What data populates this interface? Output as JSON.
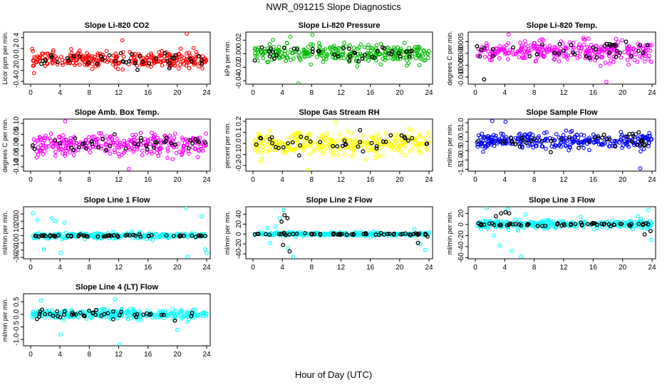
{
  "title": "NWR_091215  Slope Diagnostics",
  "xlabel": "Hour of Day (UTC)",
  "colors": {
    "red": "#ff0000",
    "green": "#00bb00",
    "magenta": "#ff00ff",
    "yellow": "#ffff00",
    "blue": "#0000ff",
    "cyan": "#00ffff",
    "black": "#000000"
  },
  "chart_data": [
    {
      "type": "scatter",
      "title": "Slope Li-820 CO2",
      "ylabel": "Licor ppm per min.",
      "xlim": [
        0,
        24
      ],
      "xticks": [
        "0",
        "4",
        "8",
        "12",
        "16",
        "20",
        "24"
      ],
      "ylim": [
        -0.45,
        0.5
      ],
      "yticks": [
        [
          "-0.4",
          "-0.4"
        ],
        [
          "-0.2",
          "-0.2"
        ],
        [
          "0.0",
          "0"
        ],
        [
          "0.2",
          "0.2"
        ],
        [
          "0.4",
          "0.4"
        ]
      ],
      "color": "red",
      "series": [
        {
          "spread": 0.13,
          "count": 300,
          "outliers": [
            [
              21.3,
              0.47
            ],
            [
              12.5,
              0.35
            ]
          ]
        },
        {
          "black": true,
          "spread": 0.12,
          "count": 40,
          "outliers": []
        }
      ]
    },
    {
      "type": "scatter",
      "title": "Slope Li-820 Pressure",
      "ylabel": "kPa per min.",
      "xlim": [
        0,
        24
      ],
      "xticks": [
        "0",
        "4",
        "8",
        "12",
        "16",
        "20",
        "24"
      ],
      "ylim": [
        -0.045,
        0.032
      ],
      "yticks": [
        [
          "-0.04",
          "-0.04"
        ],
        [
          "-0.02",
          "-0.02"
        ],
        [
          "0.00",
          "0"
        ],
        [
          "0.02",
          "0.02"
        ]
      ],
      "color": "green",
      "series": [
        {
          "spread": 0.012,
          "count": 300,
          "outliers": [
            [
              6.2,
              -0.044
            ],
            [
              8.1,
              0.028
            ],
            [
              5.1,
              0.025
            ]
          ]
        },
        {
          "black": true,
          "spread": 0.01,
          "count": 40,
          "outliers": []
        }
      ]
    },
    {
      "type": "scatter",
      "title": "Slope Li-820 Temp.",
      "ylabel": "degrees C per min.",
      "xlim": [
        0,
        24
      ],
      "xticks": [
        "0",
        "4",
        "8",
        "12",
        "16",
        "20",
        "24"
      ],
      "ylim": [
        -0.013,
        0.009
      ],
      "yticks": [
        [
          "-0.010",
          "-0.01"
        ],
        [
          "-0.005",
          "-0.005"
        ],
        [
          "0.000",
          "0"
        ],
        [
          "0.005",
          "0.005"
        ]
      ],
      "color": "magenta",
      "series": [
        {
          "spread": 0.004,
          "count": 300,
          "mean": 0.001,
          "outliers": [
            [
              17.8,
              -0.012
            ]
          ]
        },
        {
          "black": true,
          "spread": 0.004,
          "count": 40,
          "mean": 0.001,
          "outliers": [
            [
              1.2,
              -0.011
            ]
          ]
        }
      ]
    },
    {
      "type": "scatter",
      "title": "Slope Amb. Box Temp.",
      "ylabel": "degrees C per min.",
      "xlim": [
        0,
        24
      ],
      "xticks": [
        "0",
        "4",
        "8",
        "12",
        "16",
        "20",
        "24"
      ],
      "ylim": [
        -0.12,
        0.12
      ],
      "yticks": [
        [
          "-0.10",
          "-0.1"
        ],
        [
          "-0.05",
          "-0.05"
        ],
        [
          "0.00",
          "0"
        ],
        [
          "0.05",
          "0.05"
        ],
        [
          "0.10",
          "0.1"
        ]
      ],
      "color": "magenta",
      "series": [
        {
          "spread": 0.045,
          "count": 300,
          "outliers": [
            [
              4.7,
              0.11
            ],
            [
              13.4,
              -0.11
            ]
          ]
        },
        {
          "black": true,
          "spread": 0.04,
          "count": 40,
          "outliers": []
        }
      ]
    },
    {
      "type": "scatter",
      "title": "Slope Gas Stream RH",
      "ylabel": "percent per min.",
      "xlim": [
        0,
        24
      ],
      "xticks": [
        "0",
        "4",
        "8",
        "12",
        "16",
        "20",
        "24"
      ],
      "ylim": [
        -0.25,
        0.22
      ],
      "yticks": [
        [
          "-0.2",
          "-0.2"
        ],
        [
          "-0.1",
          "-0.1"
        ],
        [
          "0.0",
          "0"
        ],
        [
          "0.1",
          "0.1"
        ],
        [
          "0.2",
          "0.2"
        ]
      ],
      "color": "yellow",
      "series": [
        {
          "spread": 0.09,
          "count": 300,
          "outliers": [
            [
              7.4,
              -0.24
            ],
            [
              11.3,
              0.19
            ]
          ]
        },
        {
          "black": true,
          "spread": 0.08,
          "count": 40,
          "outliers": []
        }
      ]
    },
    {
      "type": "scatter",
      "title": "Slope Sample Flow",
      "ylabel": "ml/min per min.",
      "xlim": [
        0,
        24
      ],
      "xticks": [
        "0",
        "4",
        "8",
        "12",
        "16",
        "20",
        "24"
      ],
      "ylim": [
        -1.6,
        1.2
      ],
      "yticks": [
        [
          "-1.5",
          "-1.5"
        ],
        [
          "-1.0",
          "-1"
        ],
        [
          "-0.5",
          "-0.5"
        ],
        [
          "0.0",
          "0"
        ],
        [
          "0.5",
          "0.5"
        ],
        [
          "1.0",
          "1"
        ]
      ],
      "color": "blue",
      "series": [
        {
          "spread": 0.42,
          "count": 300,
          "outliers": [
            [
              22.4,
              -1.45
            ],
            [
              2.3,
              1.1
            ],
            [
              4.1,
              1.05
            ]
          ]
        },
        {
          "black": true,
          "spread": 0.35,
          "count": 40,
          "outliers": []
        }
      ]
    },
    {
      "type": "scatter",
      "title": "Slope Line 1 Flow",
      "ylabel": "ml/min per min.",
      "xlim": [
        0,
        24
      ],
      "xticks": [
        "0",
        "4",
        "8",
        "12",
        "16",
        "20",
        "24"
      ],
      "ylim": [
        -32,
        40
      ],
      "yticks": [
        [
          "-30",
          "-30"
        ],
        [
          "-20",
          "-20"
        ],
        [
          "-10",
          "-10"
        ],
        [
          "0",
          "0"
        ],
        [
          "10",
          "10"
        ],
        [
          "20",
          "20"
        ],
        [
          "30",
          "30"
        ]
      ],
      "color": "cyan",
      "series": [
        {
          "spread": 3.5,
          "count": 280,
          "outliers": [
            [
              0.3,
              31
            ],
            [
              0.9,
              22
            ],
            [
              2.9,
              24
            ],
            [
              3.4,
              20
            ],
            [
              4.1,
              -24
            ],
            [
              4.6,
              18
            ],
            [
              21.2,
              38
            ],
            [
              21.4,
              -29
            ],
            [
              23.3,
              27
            ],
            [
              23.8,
              -19
            ],
            [
              24.0,
              -24
            ],
            [
              1.8,
              -19
            ]
          ]
        },
        {
          "black": true,
          "spread": 1.2,
          "count": 60,
          "outliers": []
        }
      ]
    },
    {
      "type": "scatter",
      "title": "Slope Line 2 Flow",
      "ylabel": "ml/min per min.",
      "xlim": [
        0,
        24
      ],
      "xticks": [
        "0",
        "4",
        "8",
        "12",
        "16",
        "20",
        "24"
      ],
      "ylim": [
        -50,
        55
      ],
      "yticks": [
        [
          "-40",
          "-40"
        ],
        [
          "-20",
          "-20"
        ],
        [
          "0",
          "0"
        ],
        [
          "20",
          "20"
        ],
        [
          "40",
          "40"
        ]
      ],
      "color": "cyan",
      "series": [
        {
          "spread": 3,
          "count": 280,
          "outliers": [
            [
              2.3,
              -18
            ],
            [
              3.0,
              15
            ],
            [
              3.7,
              32
            ],
            [
              4.2,
              48
            ],
            [
              4.8,
              -28
            ],
            [
              5.5,
              -46
            ],
            [
              22.0,
              10
            ],
            [
              22.8,
              -20
            ],
            [
              23.5,
              -32
            ],
            [
              2.0,
              12
            ]
          ]
        },
        {
          "black": true,
          "spread": 2,
          "count": 60,
          "outliers": [
            [
              4.3,
              38
            ],
            [
              4.7,
              32
            ],
            [
              3.9,
              25
            ],
            [
              5.0,
              -35
            ],
            [
              4.1,
              -22
            ],
            [
              22.5,
              -18
            ],
            [
              23.8,
              -5
            ]
          ]
        }
      ]
    },
    {
      "type": "scatter",
      "title": "Slope Line 3 Flow",
      "ylabel": "ml/min per min.",
      "xlim": [
        0,
        24
      ],
      "xticks": [
        "0",
        "4",
        "8",
        "12",
        "16",
        "20",
        "24"
      ],
      "ylim": [
        -62,
        32
      ],
      "yticks": [
        [
          "-60",
          "-60"
        ],
        [
          "-40",
          "-40"
        ],
        [
          "-20",
          "-20"
        ],
        [
          "0",
          "0"
        ],
        [
          "20",
          "20"
        ]
      ],
      "color": "cyan",
      "series": [
        {
          "spread": 7,
          "count": 280,
          "outliers": [
            [
              1.5,
              30
            ],
            [
              3.3,
              -38
            ],
            [
              4.4,
              28
            ],
            [
              5.0,
              -48
            ],
            [
              6.2,
              -58
            ],
            [
              6.8,
              18
            ],
            [
              22.1,
              15
            ],
            [
              23.5,
              26
            ],
            [
              23.9,
              -28
            ],
            [
              2.5,
              -20
            ]
          ]
        },
        {
          "black": true,
          "spread": 2.5,
          "count": 60,
          "outliers": [
            [
              3.5,
              20
            ],
            [
              4.1,
              22
            ],
            [
              4.6,
              20
            ],
            [
              2.8,
              15
            ],
            [
              23.0,
              -18
            ],
            [
              23.8,
              -12
            ]
          ]
        }
      ]
    },
    {
      "type": "scatter",
      "title": "Slope Line 4 (LT) Flow",
      "ylabel": "ml/min per min.",
      "xlim": [
        0,
        24
      ],
      "xticks": [
        "0",
        "4",
        "8",
        "12",
        "16",
        "20",
        "24"
      ],
      "ylim": [
        -1.25,
        0.82
      ],
      "yticks": [
        [
          "-1.0",
          "-1"
        ],
        [
          "-0.5",
          "-0.5"
        ],
        [
          "0.0",
          "0"
        ],
        [
          "0.5",
          "0.5"
        ]
      ],
      "color": "cyan",
      "series": [
        {
          "spread": 0.17,
          "count": 300,
          "outliers": [
            [
              12.1,
              -1.2
            ],
            [
              4.1,
              -0.8
            ],
            [
              11.5,
              0.6
            ],
            [
              20.0,
              -0.62
            ],
            [
              1.4,
              0.55
            ]
          ]
        },
        {
          "black": true,
          "spread": 0.15,
          "count": 45,
          "outliers": []
        }
      ]
    }
  ]
}
